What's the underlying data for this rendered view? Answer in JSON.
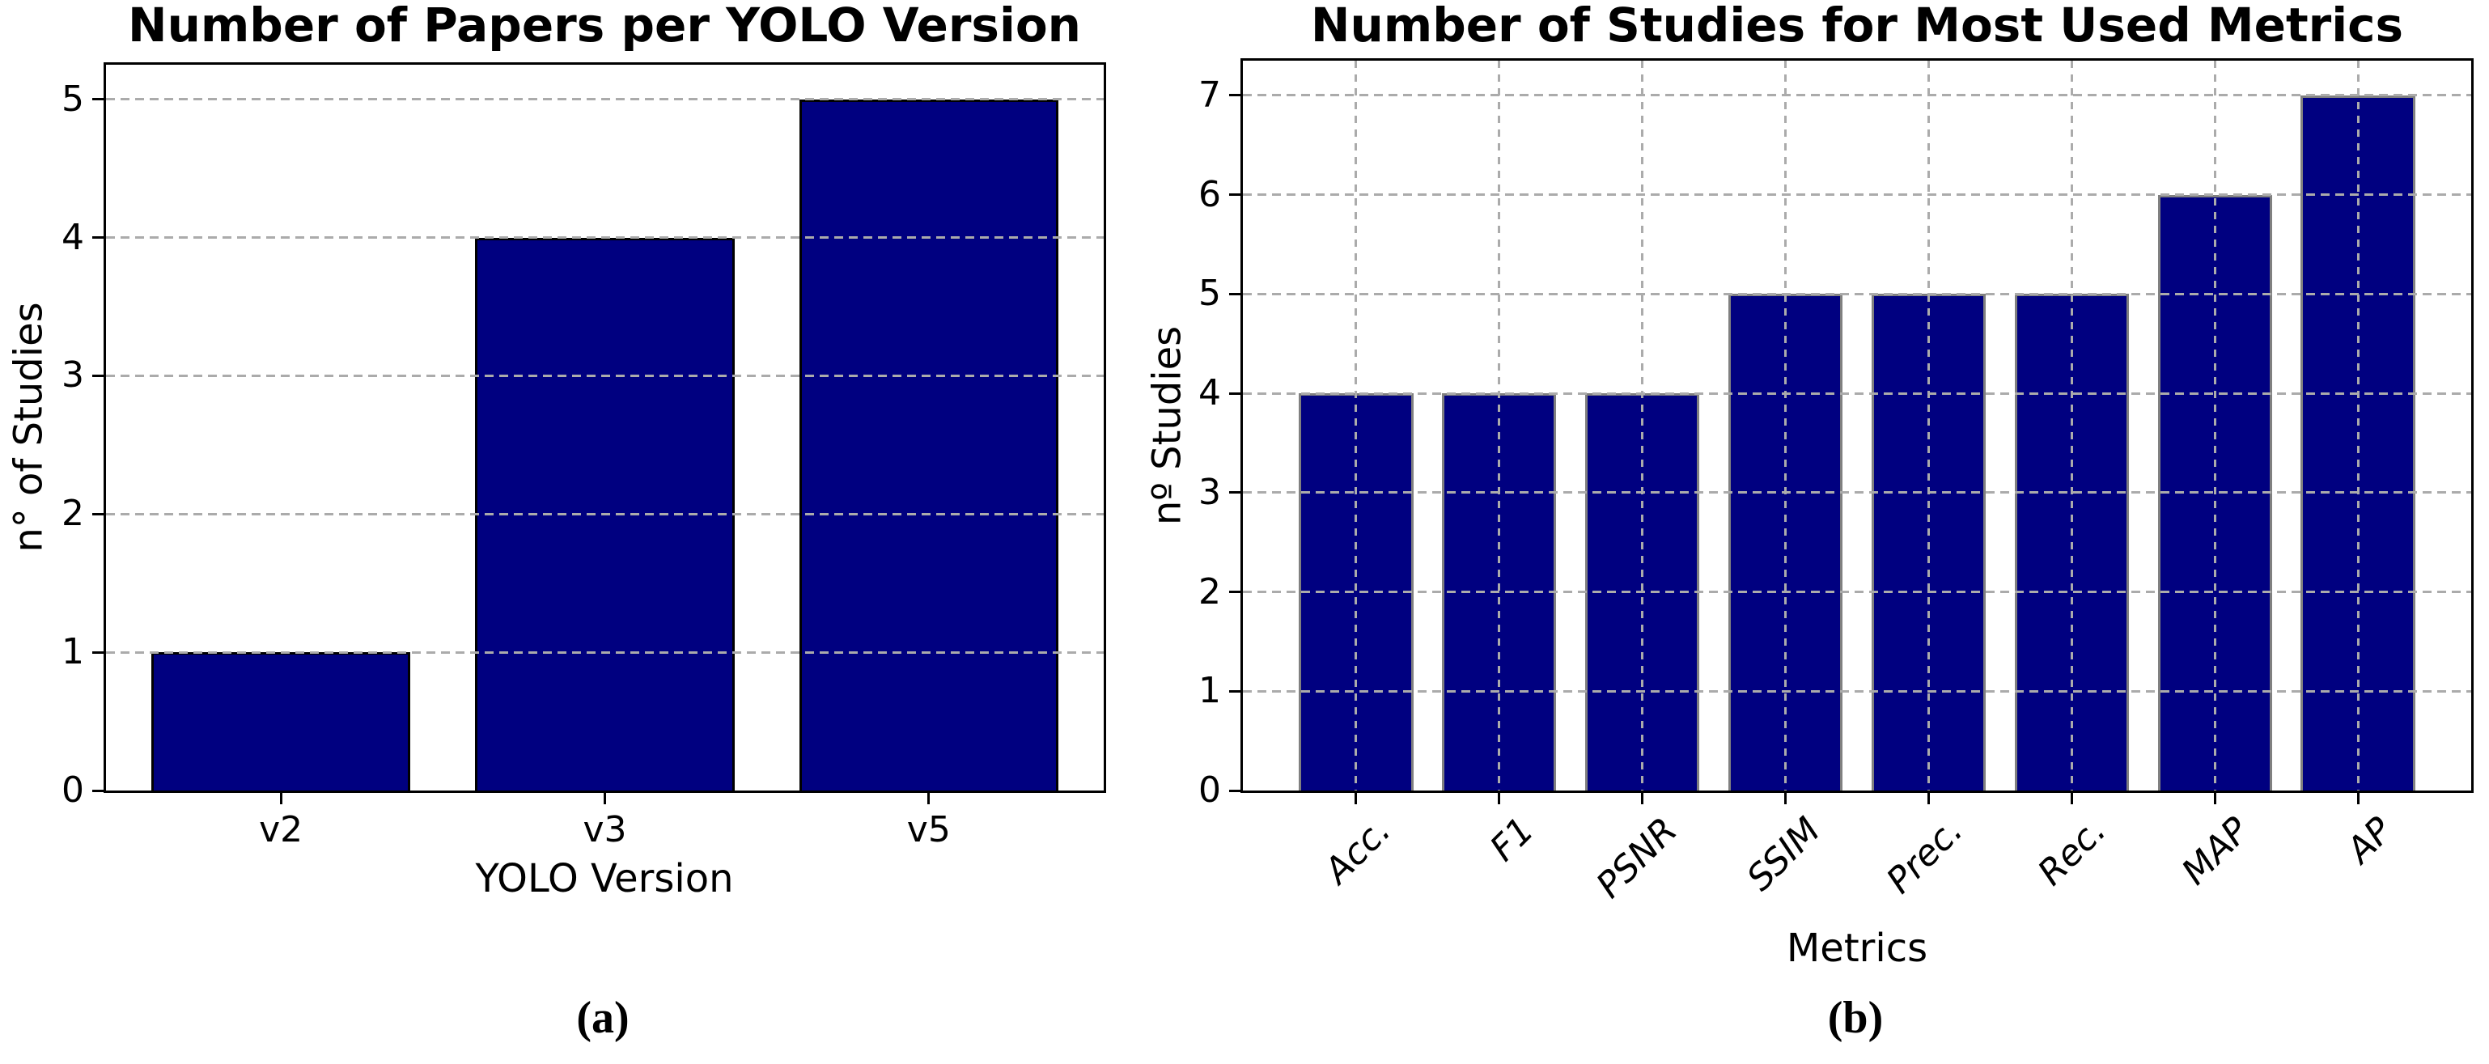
{
  "figure": {
    "background": "#ffffff"
  },
  "colors": {
    "bar_fill": "#000080",
    "bar_edge_a": "#000000",
    "bar_edge_b": "#808080",
    "grid": "#ababab",
    "axis": "#000000",
    "text": "#000000"
  },
  "chart_data": [
    {
      "type": "bar",
      "title": "Number of Papers per YOLO Version",
      "xlabel": "YOLO Version",
      "ylabel": "n° of Studies",
      "caption": "(a)",
      "categories": [
        "v2",
        "v3",
        "v5"
      ],
      "values": [
        1,
        4,
        5
      ],
      "yticks": [
        0,
        1,
        2,
        3,
        4,
        5
      ],
      "ylim": [
        0,
        5.25
      ],
      "grid": "horizontal-dashed",
      "legend": "none",
      "bar_fill": "#000080",
      "bar_edge": "#000000",
      "xtick_rotation": 0
    },
    {
      "type": "bar",
      "title": "Number of Studies for Most Used Metrics",
      "xlabel": "Metrics",
      "ylabel": "nº Studies",
      "caption": "(b)",
      "categories": [
        "Acc.",
        "F1",
        "PSNR",
        "SSIM",
        "Prec.",
        "Rec.",
        "MAP",
        "AP"
      ],
      "values": [
        4,
        4,
        4,
        5,
        5,
        5,
        6,
        7
      ],
      "yticks": [
        0,
        1,
        2,
        3,
        4,
        5,
        6,
        7
      ],
      "ylim": [
        0,
        7.35
      ],
      "grid": "both-dashed",
      "legend": "none",
      "bar_fill": "#000080",
      "bar_edge": "#808080",
      "xtick_rotation": 45
    }
  ]
}
